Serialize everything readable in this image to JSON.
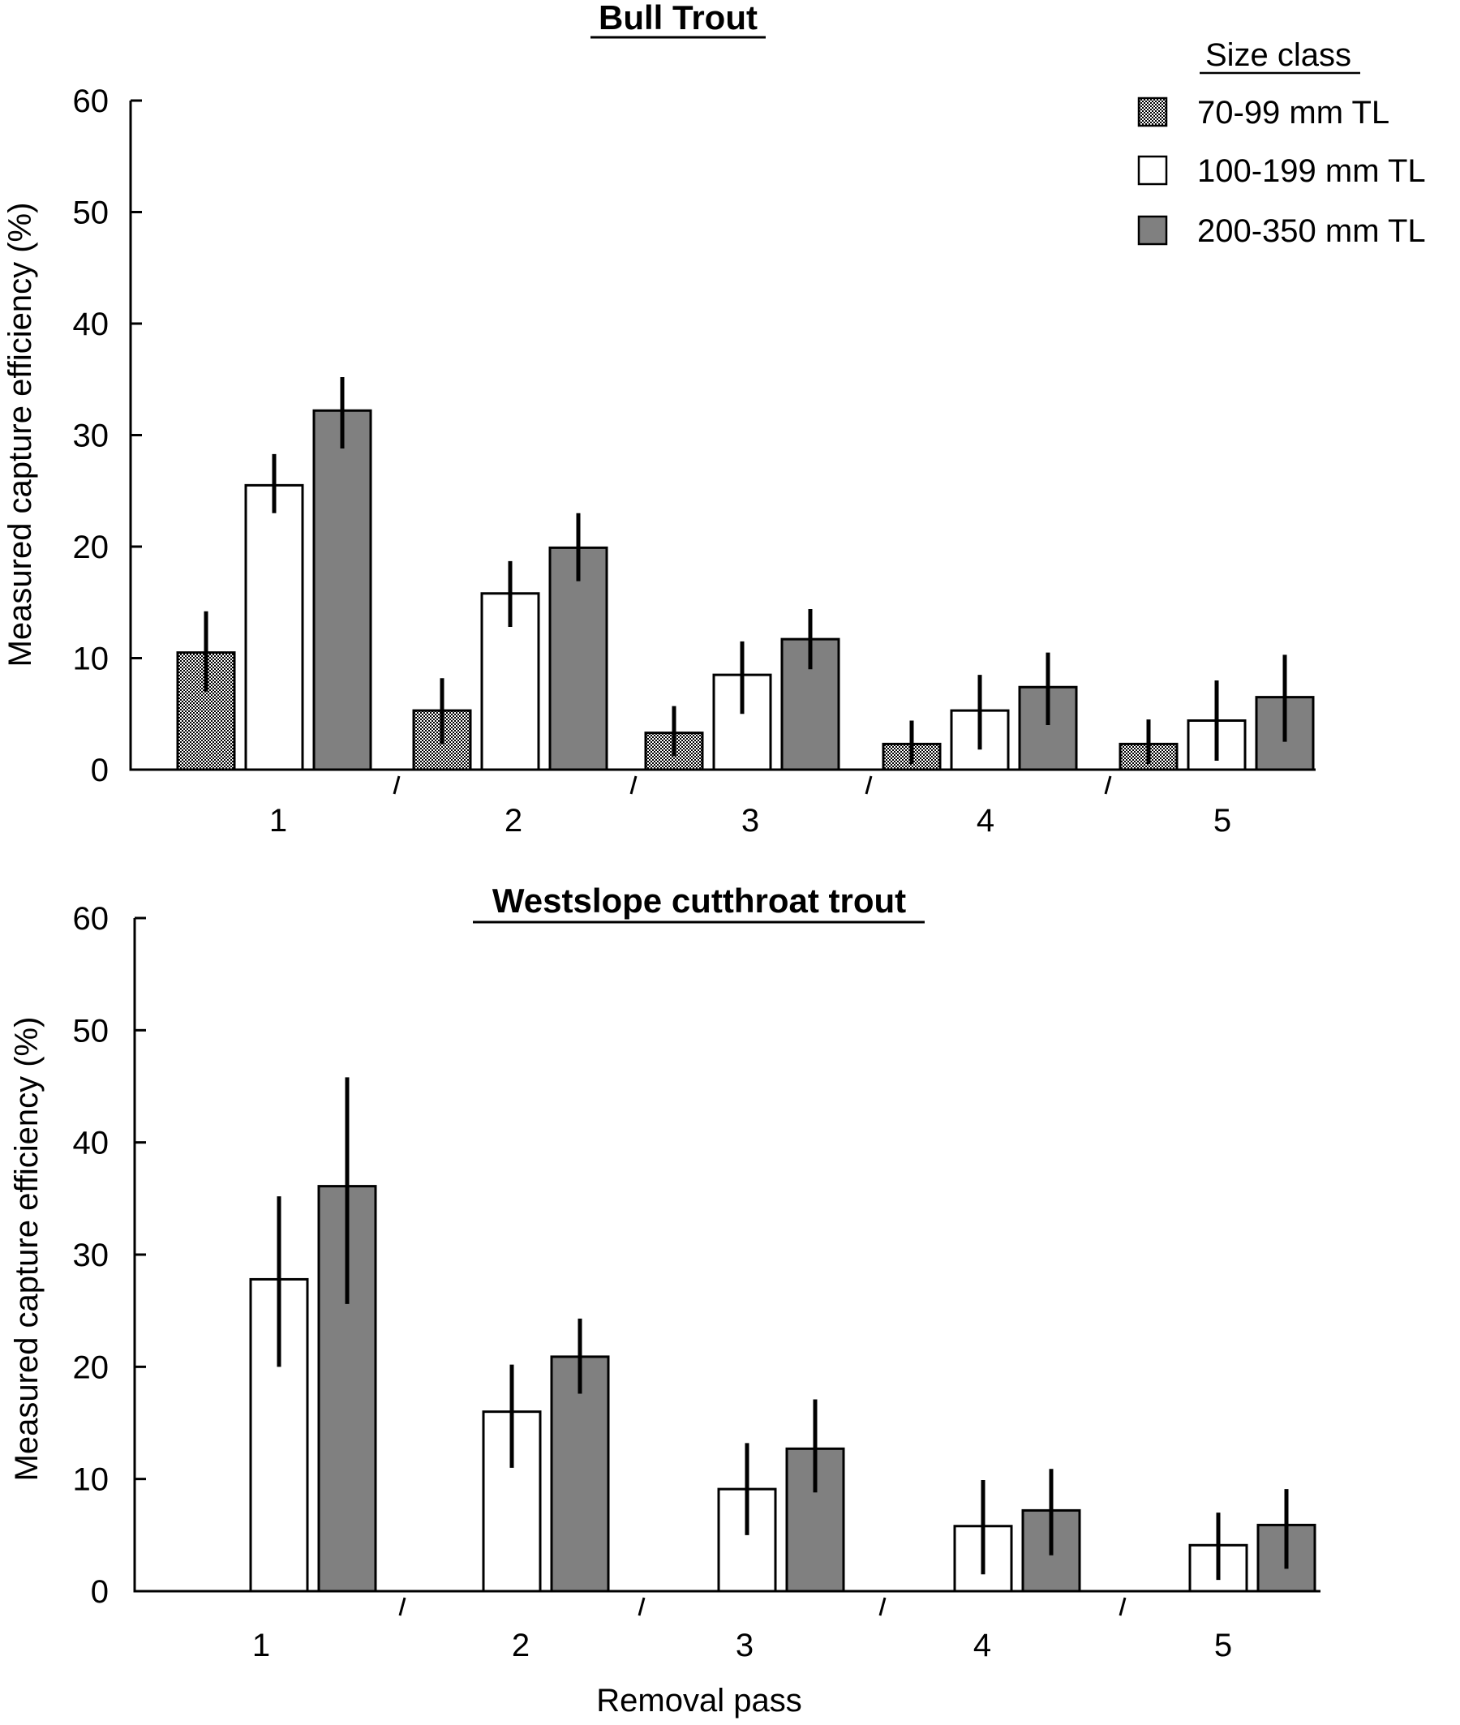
{
  "legend": {
    "title": "Size class",
    "entries": [
      {
        "label": "70-99 mm TL",
        "fill": "pattern"
      },
      {
        "label": "100-199 mm TL",
        "fill": "#ffffff"
      },
      {
        "label": "200-350 mm TL",
        "fill": "#808080"
      }
    ]
  },
  "chart_data": [
    {
      "type": "bar",
      "title": "Bull Trout",
      "xlabel": "",
      "ylabel": "Measured capture efficiency (%)",
      "categories": [
        "1",
        "2",
        "3",
        "4",
        "5"
      ],
      "ylim": [
        0,
        60
      ],
      "yticks": [
        "0",
        "10",
        "20",
        "30",
        "40",
        "50",
        "60"
      ],
      "series": [
        {
          "name": "70-99 mm TL",
          "values": [
            10.5,
            5.3,
            3.3,
            2.3,
            2.3
          ],
          "err_low": [
            7.0,
            2.3,
            1.2,
            0.5,
            0.5
          ],
          "err_high": [
            14.2,
            8.2,
            5.7,
            4.4,
            4.5
          ]
        },
        {
          "name": "100-199 mm TL",
          "values": [
            25.5,
            15.8,
            8.5,
            5.3,
            4.4
          ],
          "err_low": [
            23.0,
            12.8,
            5.0,
            1.8,
            0.8
          ],
          "err_high": [
            28.3,
            18.7,
            11.5,
            8.5,
            8.0
          ]
        },
        {
          "name": "200-350 mm TL",
          "values": [
            32.2,
            19.9,
            11.7,
            7.4,
            6.5
          ],
          "err_low": [
            28.8,
            16.9,
            9.0,
            4.0,
            2.5
          ],
          "err_high": [
            35.2,
            23.0,
            14.4,
            10.5,
            10.3
          ]
        }
      ]
    },
    {
      "type": "bar",
      "title": "Westslope cutthroat trout",
      "xlabel": "Removal pass",
      "ylabel": "Measured capture efficiency (%)",
      "categories": [
        "1",
        "2",
        "3",
        "4",
        "5"
      ],
      "ylim": [
        0,
        60
      ],
      "yticks": [
        "0",
        "10",
        "20",
        "30",
        "40",
        "50",
        "60"
      ],
      "series": [
        {
          "name": "100-199 mm TL",
          "values": [
            27.8,
            16.0,
            9.1,
            5.8,
            4.1
          ],
          "err_low": [
            20.0,
            11.0,
            5.0,
            1.5,
            1.0
          ],
          "err_high": [
            35.2,
            20.2,
            13.2,
            9.9,
            7.0
          ]
        },
        {
          "name": "200-350 mm TL",
          "values": [
            36.1,
            20.9,
            12.7,
            7.2,
            5.9
          ],
          "err_low": [
            25.6,
            17.6,
            8.8,
            3.2,
            2.0
          ],
          "err_high": [
            45.8,
            24.3,
            17.1,
            10.9,
            9.1
          ]
        }
      ]
    }
  ]
}
